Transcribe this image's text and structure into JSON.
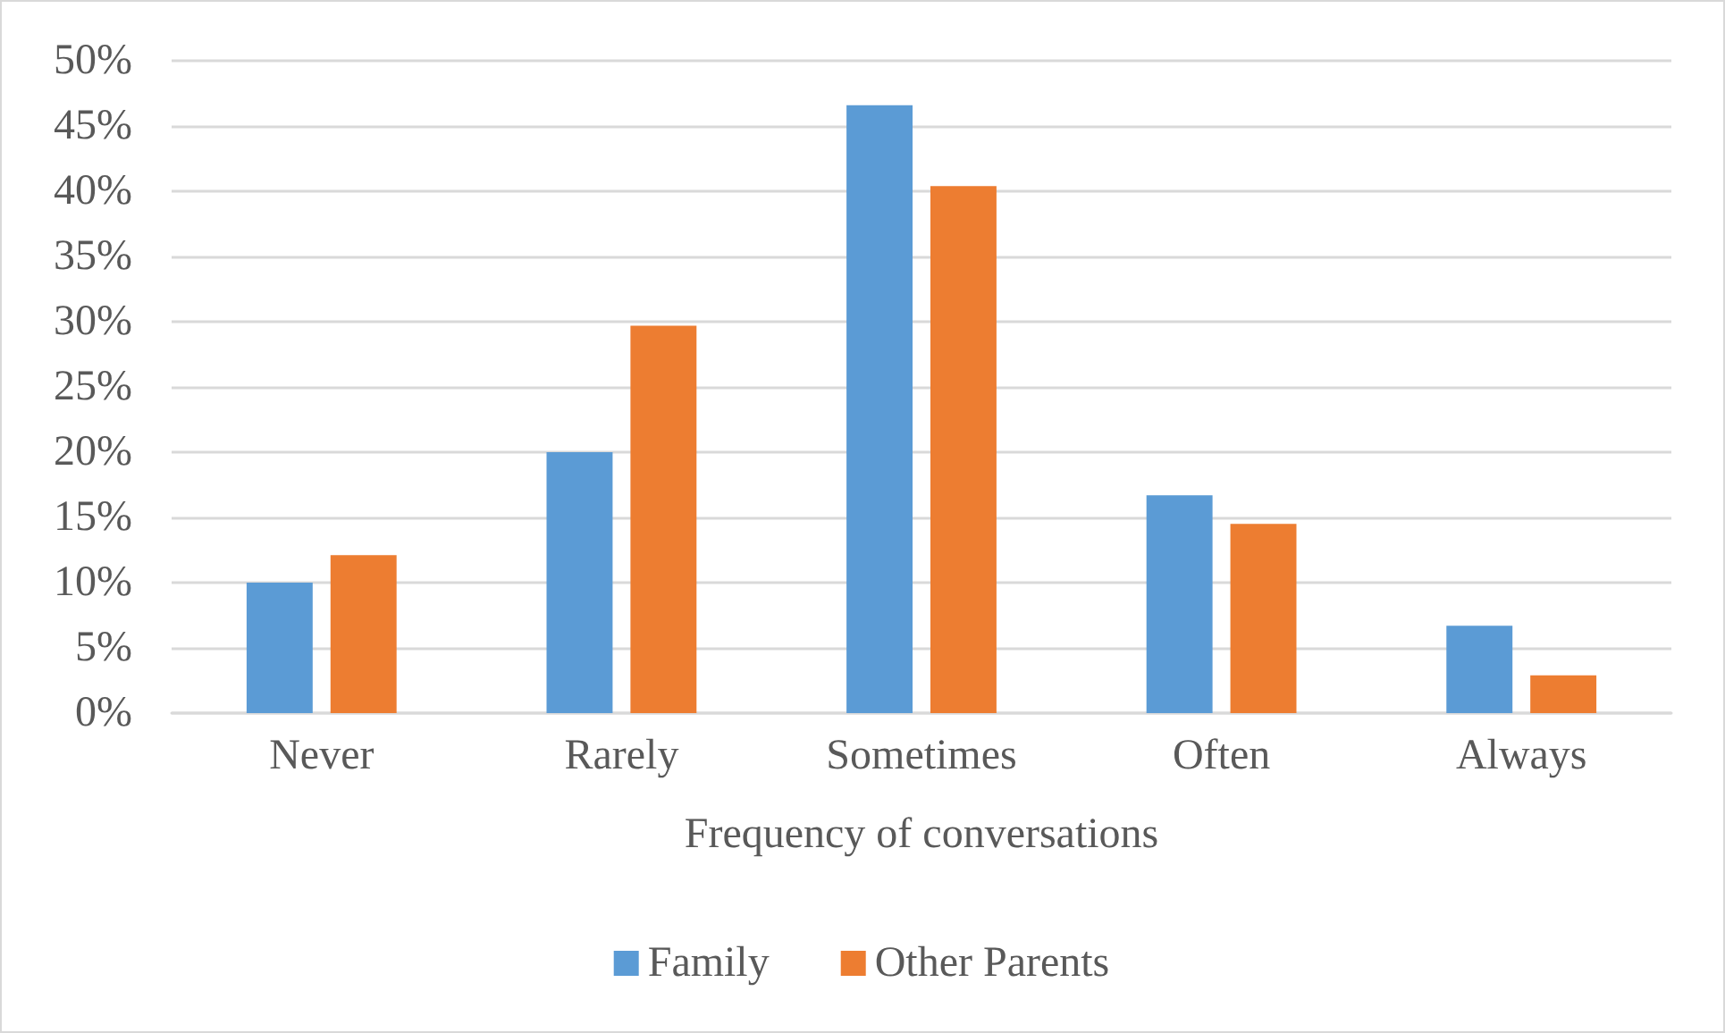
{
  "chart_data": {
    "type": "bar",
    "xlabel": "Frequency of conversations",
    "categories": [
      "Never",
      "Rarely",
      "Sometimes",
      "Often",
      "Always"
    ],
    "series": [
      {
        "name": "Family",
        "color": "#5b9bd5",
        "values": [
          10,
          20,
          46.6,
          16.7,
          6.7
        ]
      },
      {
        "name": "Other Parents",
        "color": "#ed7d31",
        "values": [
          12.1,
          29.7,
          40.4,
          14.5,
          2.9
        ]
      }
    ],
    "ylim": [
      0,
      50
    ],
    "yticks": [
      {
        "value": 0,
        "label": "0%"
      },
      {
        "value": 5,
        "label": "5%"
      },
      {
        "value": 10,
        "label": "10%"
      },
      {
        "value": 15,
        "label": "15%"
      },
      {
        "value": 20,
        "label": "20%"
      },
      {
        "value": 25,
        "label": "25%"
      },
      {
        "value": 30,
        "label": "30%"
      },
      {
        "value": 35,
        "label": "35%"
      },
      {
        "value": 40,
        "label": "40%"
      },
      {
        "value": 45,
        "label": "45%"
      },
      {
        "value": 50,
        "label": "50%"
      }
    ],
    "grid": "y",
    "legend": "bottom"
  }
}
